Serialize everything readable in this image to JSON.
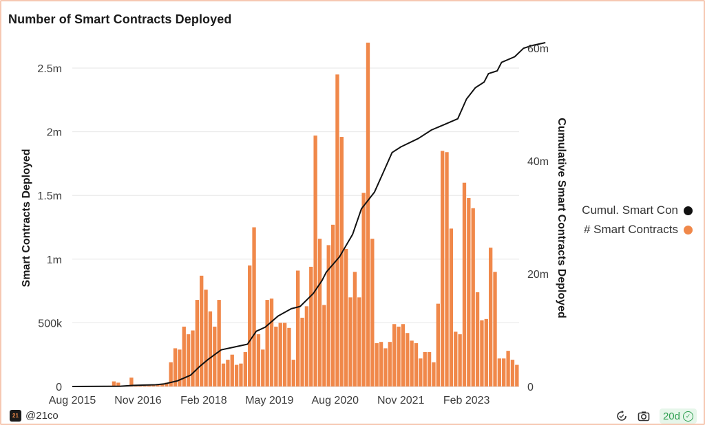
{
  "title": "Number of Smart Contracts Deployed",
  "footer": {
    "handle": "@21co",
    "badge": "20d",
    "logo_text": "21"
  },
  "icons": {
    "logo": "21co-logo-icon",
    "refresh": "refresh-icon",
    "camera": "camera-icon",
    "check": "check-circle-icon"
  },
  "chart_data": {
    "type": "bar+line",
    "title": "Number of Smart Contracts Deployed",
    "x_tick_labels": [
      "Aug 2015",
      "Nov 2016",
      "Feb 2018",
      "May 2019",
      "Aug 2020",
      "Nov 2021",
      "Feb 2023"
    ],
    "x_tick_months": [
      "2015-08",
      "2016-11",
      "2018-02",
      "2019-05",
      "2020-08",
      "2021-11",
      "2023-02"
    ],
    "x_start_month": "2015-08",
    "y_left": {
      "label": "Smart Contracts Deployed",
      "range": [
        0,
        2700000
      ],
      "ticks": [
        0,
        500000,
        1000000,
        1500000,
        2000000,
        2500000
      ],
      "tick_labels": [
        "0",
        "500k",
        "1m",
        "1.5m",
        "2m",
        "2.5m"
      ]
    },
    "y_right": {
      "label": "Cumulative Smart Contracts Deployed",
      "range": [
        0,
        61000000
      ],
      "ticks": [
        0,
        20000000,
        40000000,
        60000000
      ],
      "tick_labels": [
        "0",
        "20m",
        "40m",
        "60m"
      ]
    },
    "grid": "horizontal",
    "legend_position": "right",
    "series": [
      {
        "name": "# Smart Contracts",
        "type": "bar",
        "axis": "left",
        "color": "#f0884a",
        "values": [
          2000,
          3000,
          3000,
          3000,
          4000,
          5000,
          5000,
          5000,
          6000,
          40000,
          30000,
          2000,
          5000,
          70000,
          6000,
          8000,
          8000,
          9000,
          10000,
          12000,
          15000,
          30000,
          190000,
          300000,
          290000,
          470000,
          410000,
          440000,
          680000,
          870000,
          760000,
          590000,
          470000,
          680000,
          180000,
          210000,
          250000,
          170000,
          180000,
          270000,
          950000,
          1250000,
          410000,
          290000,
          680000,
          690000,
          470000,
          500000,
          500000,
          460000,
          210000,
          910000,
          540000,
          630000,
          940000,
          1970000,
          1160000,
          640000,
          1110000,
          1270000,
          2450000,
          1960000,
          1080000,
          700000,
          900000,
          700000,
          1520000,
          2700000,
          1160000,
          340000,
          350000,
          300000,
          350000,
          490000,
          470000,
          490000,
          420000,
          360000,
          340000,
          220000,
          270000,
          270000,
          190000,
          650000,
          1850000,
          1840000,
          1240000,
          430000,
          410000,
          1600000,
          1480000,
          1400000,
          740000,
          520000,
          530000,
          1090000,
          900000,
          220000,
          220000,
          280000,
          210000,
          170000
        ]
      },
      {
        "name": "Cumul. Smart Con",
        "type": "line",
        "axis": "right",
        "color": "#111111",
        "values": [
          [
            0,
            0
          ],
          [
            11,
            0.05
          ],
          [
            14,
            0.2
          ],
          [
            16,
            0.25
          ],
          [
            19,
            0.3
          ],
          [
            21,
            0.45
          ],
          [
            24,
            1
          ],
          [
            27,
            2
          ],
          [
            29,
            3.5
          ],
          [
            31,
            4.8
          ],
          [
            34,
            6.5
          ],
          [
            37,
            7
          ],
          [
            40,
            7.5
          ],
          [
            42,
            9.8
          ],
          [
            44,
            10.5
          ],
          [
            47,
            12.5
          ],
          [
            50,
            13.8
          ],
          [
            52,
            14.2
          ],
          [
            55,
            16.5
          ],
          [
            57,
            18.8
          ],
          [
            58,
            20.3
          ],
          [
            61,
            23
          ],
          [
            64,
            27
          ],
          [
            66,
            31.5
          ],
          [
            69,
            34.5
          ],
          [
            71,
            38
          ],
          [
            73,
            41.5
          ],
          [
            75,
            42.5
          ],
          [
            79,
            44
          ],
          [
            82,
            45.5
          ],
          [
            85,
            46.5
          ],
          [
            88,
            47.5
          ],
          [
            90,
            51
          ],
          [
            92,
            53
          ],
          [
            94,
            54
          ],
          [
            95,
            55.5
          ],
          [
            97,
            56
          ],
          [
            98,
            57.5
          ],
          [
            101,
            58.5
          ],
          [
            103,
            60
          ],
          [
            105,
            60.5
          ],
          [
            108,
            61
          ]
        ]
      }
    ]
  }
}
